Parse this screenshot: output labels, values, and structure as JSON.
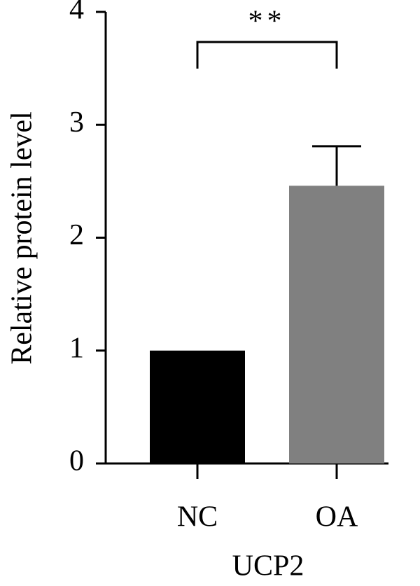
{
  "chart_data": {
    "type": "bar",
    "y_label": "Relative protein level",
    "x_label": "UCP2",
    "categories": [
      "NC",
      "OA"
    ],
    "values": [
      1,
      2.46
    ],
    "errors": [
      null,
      0.35
    ],
    "colors": [
      "#000000",
      "#808080"
    ],
    "ylim": [
      0,
      4
    ],
    "yticks": [
      0,
      1,
      2,
      3,
      4
    ],
    "significance": "**"
  }
}
